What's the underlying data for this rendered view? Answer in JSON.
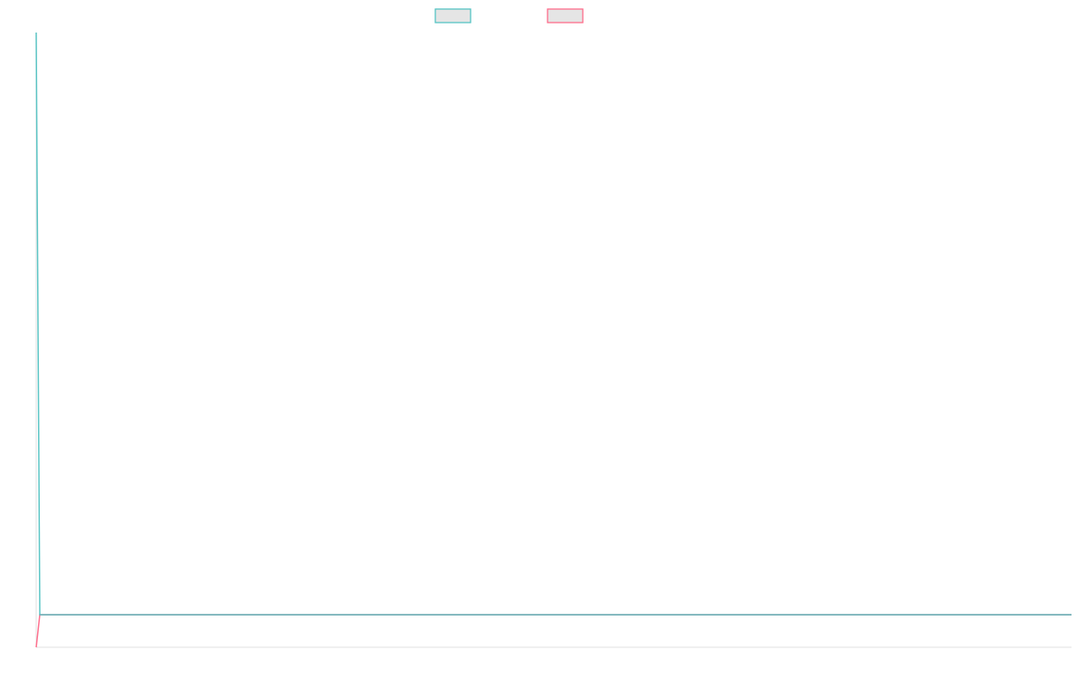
{
  "chart_data": {
    "type": "line",
    "title": "",
    "xlabel": "",
    "ylabel": "",
    "xlim": [
      0,
      286
    ],
    "ylim": [
      0,
      100
    ],
    "grid": false,
    "legend_position": "top",
    "series": [
      {
        "color": "#4bc0c0",
        "points": [
          [
            0,
            100
          ],
          [
            1,
            5.3
          ],
          [
            286,
            5.3
          ]
        ]
      },
      {
        "color": "#ff6384",
        "points": [
          [
            0,
            0
          ],
          [
            1,
            5.3
          ],
          [
            286,
            5.3
          ]
        ]
      }
    ],
    "axis_color": "#e0e0e0",
    "legend_box_fill": "#e5e5e5"
  }
}
